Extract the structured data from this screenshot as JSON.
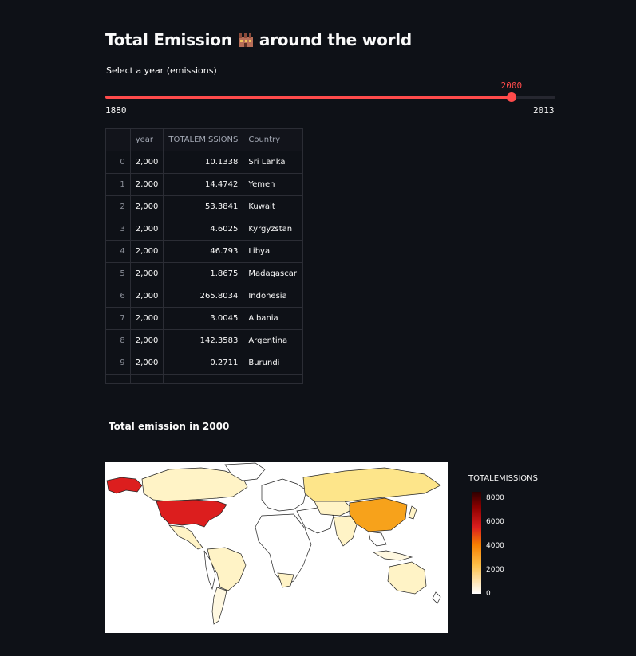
{
  "header": {
    "title": "Total Emission",
    "title_suffix": "around the world",
    "title_icon": "factory-icon"
  },
  "slider": {
    "label": "Select a year (emissions)",
    "value": 2000,
    "value_label": "2000",
    "min": 1880,
    "max": 2013,
    "min_label": "1880",
    "max_label": "2013",
    "accent": "#ff4b4b"
  },
  "table": {
    "columns": [
      "",
      "year",
      "TOTALEMISSIONS",
      "Country"
    ],
    "rows": [
      {
        "idx": "0",
        "year": "2,000",
        "em": "10.1338",
        "country": "Sri Lanka"
      },
      {
        "idx": "1",
        "year": "2,000",
        "em": "14.4742",
        "country": "Yemen"
      },
      {
        "idx": "2",
        "year": "2,000",
        "em": "53.3841",
        "country": "Kuwait"
      },
      {
        "idx": "3",
        "year": "2,000",
        "em": "4.6025",
        "country": "Kyrgyzstan"
      },
      {
        "idx": "4",
        "year": "2,000",
        "em": "46.793",
        "country": "Libya"
      },
      {
        "idx": "5",
        "year": "2,000",
        "em": "1.8675",
        "country": "Madagascar"
      },
      {
        "idx": "6",
        "year": "2,000",
        "em": "265.8034",
        "country": "Indonesia"
      },
      {
        "idx": "7",
        "year": "2,000",
        "em": "3.0045",
        "country": "Albania"
      },
      {
        "idx": "8",
        "year": "2,000",
        "em": "142.3583",
        "country": "Argentina"
      },
      {
        "idx": "9",
        "year": "2,000",
        "em": "0.2711",
        "country": "Burundi"
      }
    ]
  },
  "map": {
    "title": "Total emission in 2000",
    "colorbar_title": "TOTALEMISSIONS",
    "colorbar_ticks": [
      "8000",
      "6000",
      "4000",
      "2000",
      "0"
    ],
    "colorbar_range": [
      0,
      8500
    ],
    "highlight_colors": {
      "usa": "#dc1e1e",
      "china": "#f7a21b",
      "russia": "#fde58a",
      "low": "#fff6dc"
    }
  }
}
